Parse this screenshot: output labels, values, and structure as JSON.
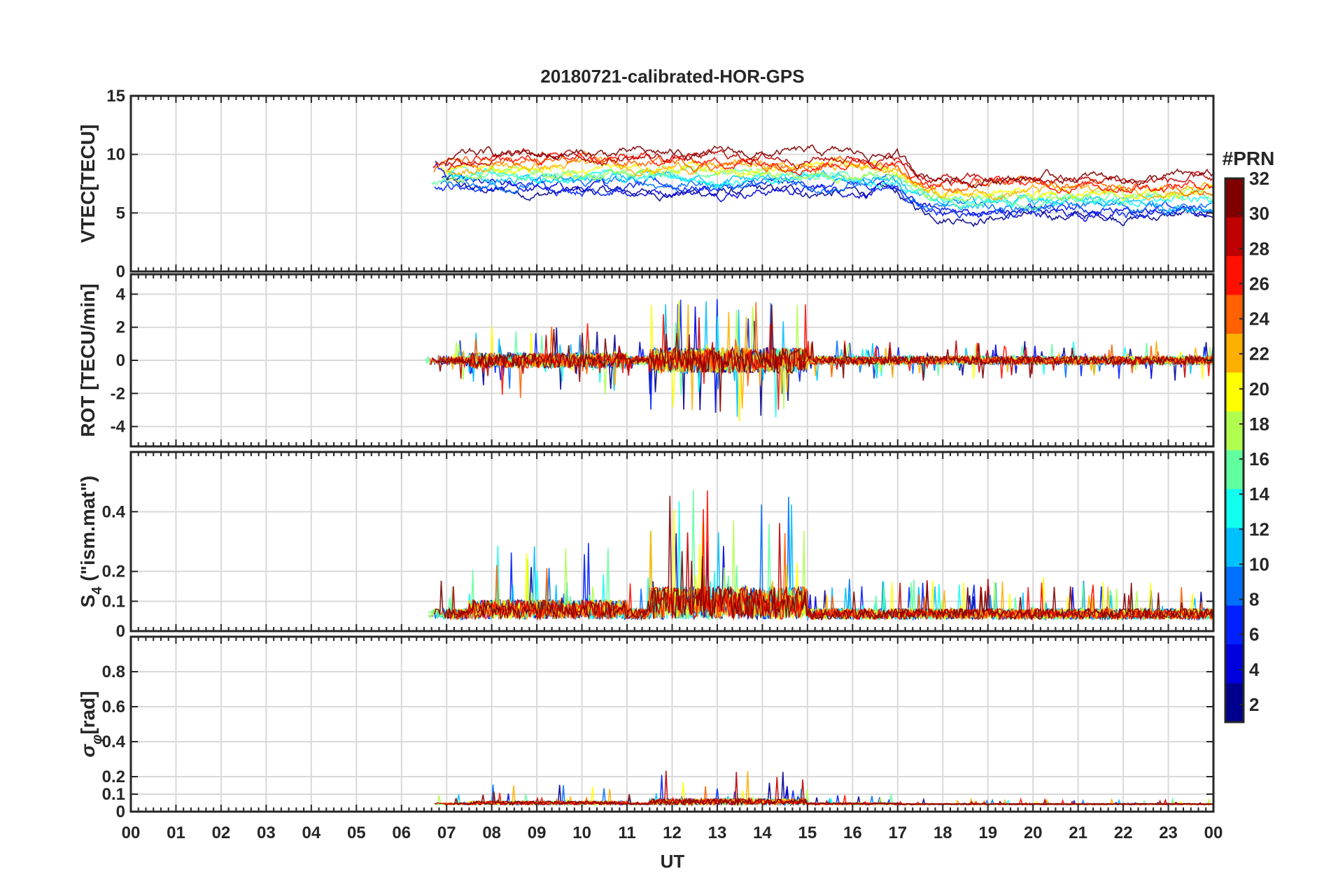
{
  "figure": {
    "title": "20180721-calibrated-HOR-GPS",
    "x_label": "UT",
    "x_tick_labels": [
      "00",
      "01",
      "02",
      "03",
      "04",
      "05",
      "06",
      "07",
      "08",
      "09",
      "10",
      "11",
      "12",
      "13",
      "14",
      "15",
      "16",
      "17",
      "18",
      "19",
      "20",
      "21",
      "22",
      "23",
      "00"
    ]
  },
  "colorbar": {
    "label": "#PRN",
    "range": [
      1,
      32
    ],
    "tick_labels": [
      "2",
      "4",
      "6",
      "8",
      "10",
      "12",
      "14",
      "16",
      "18",
      "20",
      "22",
      "24",
      "26",
      "28",
      "30",
      "32"
    ],
    "colors": [
      "#00008f",
      "#0000df",
      "#0020ff",
      "#0070ff",
      "#00c0ff",
      "#10ffef",
      "#60ff9f",
      "#b0ff4f",
      "#ffff00",
      "#ffaf00",
      "#ff6000",
      "#ff1000",
      "#bf0000",
      "#800000"
    ]
  },
  "chart_data": [
    {
      "type": "line",
      "id": "vtec",
      "ylabel": "VTEC[TECU]",
      "xlim": [
        0,
        24
      ],
      "ylim": [
        0,
        15
      ],
      "y_ticks": [
        0,
        5,
        10,
        15
      ],
      "y_tick_labels": [
        "0",
        "5",
        "10",
        "15"
      ],
      "data_start_hour": 6.5,
      "baseline": 8.5,
      "late_baseline": 6.5,
      "noise": 1.2
    },
    {
      "type": "line",
      "id": "rot",
      "ylabel": "ROT [TECU/min]",
      "xlim": [
        0,
        24
      ],
      "ylim": [
        -5.2,
        5.2
      ],
      "y_ticks": [
        -4,
        -2,
        0,
        2,
        4
      ],
      "y_tick_labels": [
        "-4",
        "-2",
        "0",
        "2",
        "4"
      ],
      "data_start_hour": 6.5,
      "baseline": 0,
      "noise": 0.35
    },
    {
      "type": "line",
      "id": "s4",
      "ylabel": "S4 (\"ism.mat\")",
      "ylabel_main": "S",
      "ylabel_sub": "4",
      "ylabel_rest": " (\"ism.mat\")",
      "xlim": [
        0,
        24
      ],
      "ylim": [
        0,
        0.6
      ],
      "y_ticks": [
        0,
        0.1,
        0.2,
        0.4
      ],
      "y_tick_labels": [
        "0",
        "0.1",
        "0.2",
        "0.4"
      ],
      "data_start_hour": 6.5,
      "baseline": 0.04,
      "noise": 0.05
    },
    {
      "type": "line",
      "id": "sigphi",
      "ylabel": "σφ[rad]",
      "ylabel_main": "σ",
      "ylabel_sub": "φ",
      "ylabel_rest": "[rad]",
      "xlim": [
        0,
        24
      ],
      "ylim": [
        0,
        1
      ],
      "y_ticks": [
        0,
        0.1,
        0.2,
        0.4,
        0.6,
        0.8
      ],
      "y_tick_labels": [
        "0",
        "0.1",
        "0.2",
        "0.4",
        "0.6",
        "0.8"
      ],
      "data_start_hour": 6.6,
      "baseline": 0.04,
      "noise": 0.03
    }
  ]
}
